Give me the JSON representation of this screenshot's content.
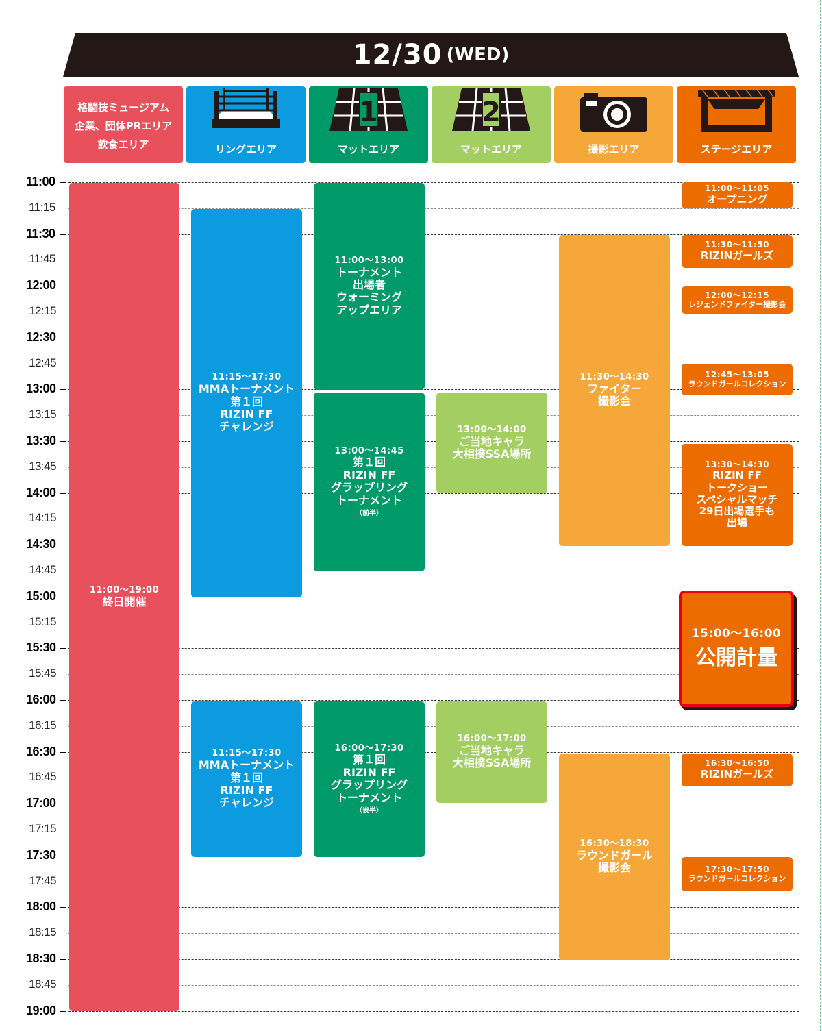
{
  "banner": {
    "date": "12/30",
    "day": "(WED)"
  },
  "colors": {
    "banner": "#231815",
    "museum": "#e8505b",
    "ring": "#0d9be0",
    "mat1": "#009a68",
    "mat2": "#a3cf62",
    "photo": "#f5a73a",
    "stage": "#ec6c00",
    "highlight_border": "#e60012"
  },
  "headers": [
    {
      "lines": [
        "格闘技ミュージアム",
        "企業、団体PRエリア",
        "飲食エリア"
      ],
      "icon": "none"
    },
    {
      "label": "リングエリア",
      "icon": "boxing-ring-icon"
    },
    {
      "label": "マットエリア",
      "icon": "mat-1-icon",
      "number": "1"
    },
    {
      "label": "マットエリア",
      "icon": "mat-2-icon",
      "number": "2"
    },
    {
      "label": "撮影エリア",
      "icon": "camera-icon"
    },
    {
      "label": "ステージエリア",
      "icon": "stage-truss-icon"
    }
  ],
  "times": [
    "11:00",
    "11:15",
    "11:30",
    "11:45",
    "12:00",
    "12:15",
    "12:30",
    "12:45",
    "13:00",
    "13:15",
    "13:30",
    "13:45",
    "14:00",
    "14:15",
    "14:30",
    "14:45",
    "15:00",
    "15:15",
    "15:30",
    "15:45",
    "16:00",
    "16:15",
    "16:30",
    "16:45",
    "17:00",
    "17:15",
    "17:30",
    "17:45",
    "18:00",
    "18:15",
    "18:30",
    "18:45",
    "19:00"
  ],
  "events": {
    "museum_allday": {
      "time": "11:00～19:00",
      "title": "終日開催"
    },
    "ring_1": {
      "time": "11:15～17:30",
      "title": [
        "MMAトーナメント",
        "第１回",
        "RIZIN FF",
        "チャレンジ"
      ]
    },
    "ring_2": {
      "time": "11:15～17:30",
      "title": [
        "MMAトーナメント",
        "第１回",
        "RIZIN FF",
        "チャレンジ"
      ]
    },
    "mat1_warmup": {
      "time": "11:00～13:00",
      "title": [
        "トーナメント",
        "出場者",
        "ウォーミング",
        "アップエリア"
      ]
    },
    "mat1_grappling_1": {
      "time": "13:00～14:45",
      "title": [
        "第１回",
        "RIZIN FF",
        "グラップリング",
        "トーナメント"
      ],
      "note": "（前半）"
    },
    "mat1_grappling_2": {
      "time": "16:00～17:30",
      "title": [
        "第１回",
        "RIZIN FF",
        "グラップリング",
        "トーナメント"
      ],
      "note": "（後半）"
    },
    "mat2_chara_1": {
      "time": "13:00～14:00",
      "title": [
        "ご当地キャラ",
        "大相撲SSA場所"
      ]
    },
    "mat2_chara_2": {
      "time": "16:00～17:00",
      "title": [
        "ご当地キャラ",
        "大相撲SSA場所"
      ]
    },
    "photo_fighter": {
      "time": "11:30～14:30",
      "title": [
        "ファイター",
        "撮影会"
      ]
    },
    "photo_roundgirl": {
      "time": "16:30～18:30",
      "title": [
        "ラウンドガール",
        "撮影会"
      ]
    },
    "stage_opening": {
      "time": "11:00～11:05",
      "title": "オープニング"
    },
    "stage_girls_1": {
      "time": "11:30～11:50",
      "title": "RIZINガールズ"
    },
    "stage_legend": {
      "time": "12:00～12:15",
      "title": "レジェンドファイター撮影会"
    },
    "stage_collection_1": {
      "time": "12:45～13:05",
      "title": "ラウンドガールコレクション"
    },
    "stage_talk": {
      "time": "13:30～14:30",
      "title": [
        "RIZIN FF",
        "トークショー",
        "スペシャルマッチ",
        "29日出場選手も",
        "出場"
      ]
    },
    "stage_weighin": {
      "time": "15:00～16:00",
      "title": "公開計量"
    },
    "stage_girls_2": {
      "time": "16:30～16:50",
      "title": "RIZINガールズ"
    },
    "stage_collection_2": {
      "time": "17:30～17:50",
      "title": "ラウンドガールコレクション"
    }
  }
}
